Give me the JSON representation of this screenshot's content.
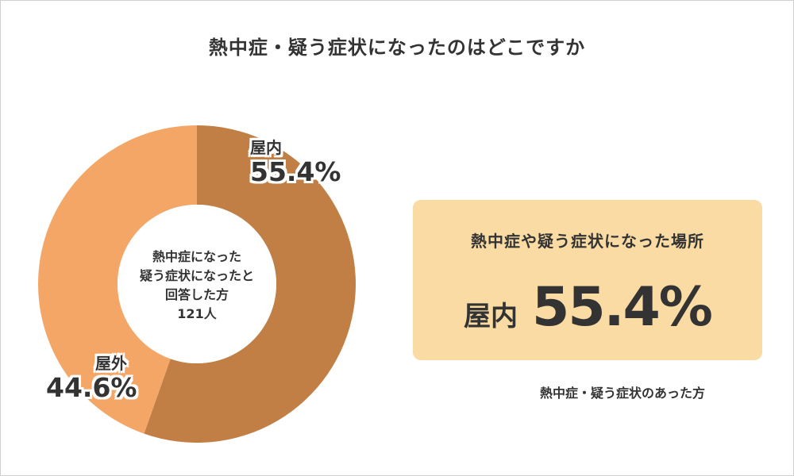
{
  "title": "熱中症・疑う症状になったのはどこですか",
  "chart_data": {
    "type": "pie",
    "title": "熱中症・疑う症状になったのはどこですか",
    "center_text": [
      "熱中症になった",
      "疑う症状になったと",
      "回答した方",
      "121人"
    ],
    "slices": [
      {
        "label": "屋内",
        "value": 55.4,
        "display": "55.4%",
        "color": "#c17f45"
      },
      {
        "label": "屋外",
        "value": 44.6,
        "display": "44.6%",
        "color": "#f4a666"
      }
    ]
  },
  "highlight": {
    "heading": "熱中症や疑う症状になった場所",
    "name": "屋内",
    "value": "55.4%"
  },
  "footnote": "熱中症・疑う症状のあった方",
  "colors": {
    "indoor": "#c17f45",
    "outdoor": "#f4a666",
    "highlight_bg": "#f9dba3",
    "text": "#333333"
  }
}
